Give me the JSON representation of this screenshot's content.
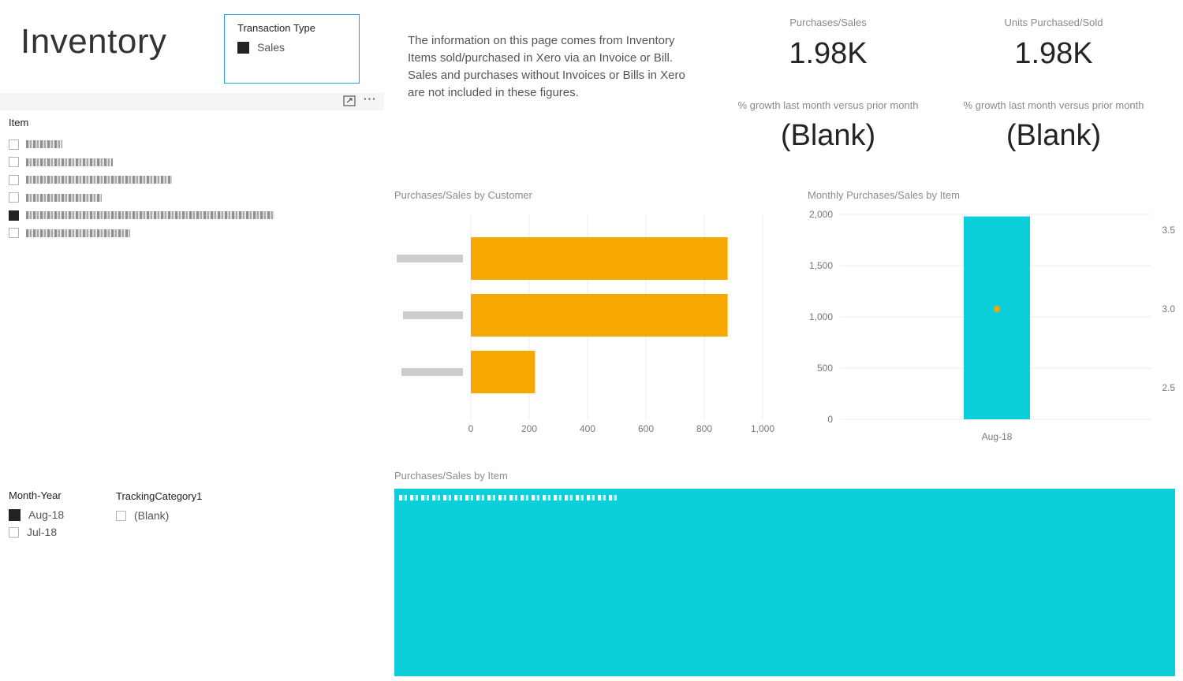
{
  "page": {
    "title": "Inventory"
  },
  "transaction_slicer": {
    "header": "Transaction Type",
    "items": [
      {
        "label": "Sales",
        "selected": true
      }
    ]
  },
  "visual_header": {
    "focus_icon": "focus-mode-icon",
    "more_icon": "more-options-icon"
  },
  "item_slicer": {
    "header": "Item",
    "rows": [
      {
        "selected": false
      },
      {
        "selected": false
      },
      {
        "selected": false
      },
      {
        "selected": false
      },
      {
        "selected": true
      },
      {
        "selected": false
      }
    ]
  },
  "description": "The information on this page comes from Inventory Items sold/purchased in Xero via an Invoice or Bill. Sales and purchases without Invoices or Bills in Xero are not included in these figures.",
  "kpis": [
    {
      "label": "Purchases/Sales",
      "value": "1.98K",
      "growth_label": "% growth last month versus prior month",
      "growth_value": "(Blank)"
    },
    {
      "label": "Units Purchased/Sold",
      "value": "1.98K",
      "growth_label": "% growth last month versus prior month",
      "growth_value": "(Blank)"
    }
  ],
  "customer_chart_title": "Purchases/Sales by Customer",
  "monthly_chart_title": "Monthly Purchases/Sales by Item",
  "treemap_title": "Purchases/Sales by Item",
  "month_slicer": {
    "header": "Month-Year",
    "items": [
      {
        "label": "Aug-18",
        "selected": true
      },
      {
        "label": "Jul-18",
        "selected": false
      }
    ]
  },
  "tracking_slicer": {
    "header": "TrackingCategory1",
    "items": [
      {
        "label": "(Blank)",
        "selected": false
      }
    ]
  },
  "colors": {
    "bar": "#f6a800",
    "column": "#0ccfd9",
    "accent": "#20a4e0",
    "point": "#f6a800"
  },
  "chart_data": [
    {
      "type": "bar",
      "title": "Purchases/Sales by Customer",
      "categories": [
        "",
        "",
        ""
      ],
      "values": [
        880,
        880,
        220
      ],
      "xlim": [
        0,
        1000
      ],
      "xticks": [
        "0",
        "200",
        "400",
        "600",
        "800",
        "1,000"
      ],
      "grid": true
    },
    {
      "type": "bar",
      "title": "Monthly Purchases/Sales by Item",
      "categories": [
        "Aug-18"
      ],
      "series": [
        {
          "values": [
            1980
          ]
        }
      ],
      "ylim": [
        0,
        2000
      ],
      "yticks": [
        "0",
        "500",
        "1,000",
        "1,500",
        "2,000"
      ],
      "y2lim": [
        2.3,
        3.6
      ],
      "y2ticks": [
        "2.5",
        "3.0",
        "3.5"
      ],
      "line_points": [
        3.0
      ],
      "grid": true
    }
  ]
}
